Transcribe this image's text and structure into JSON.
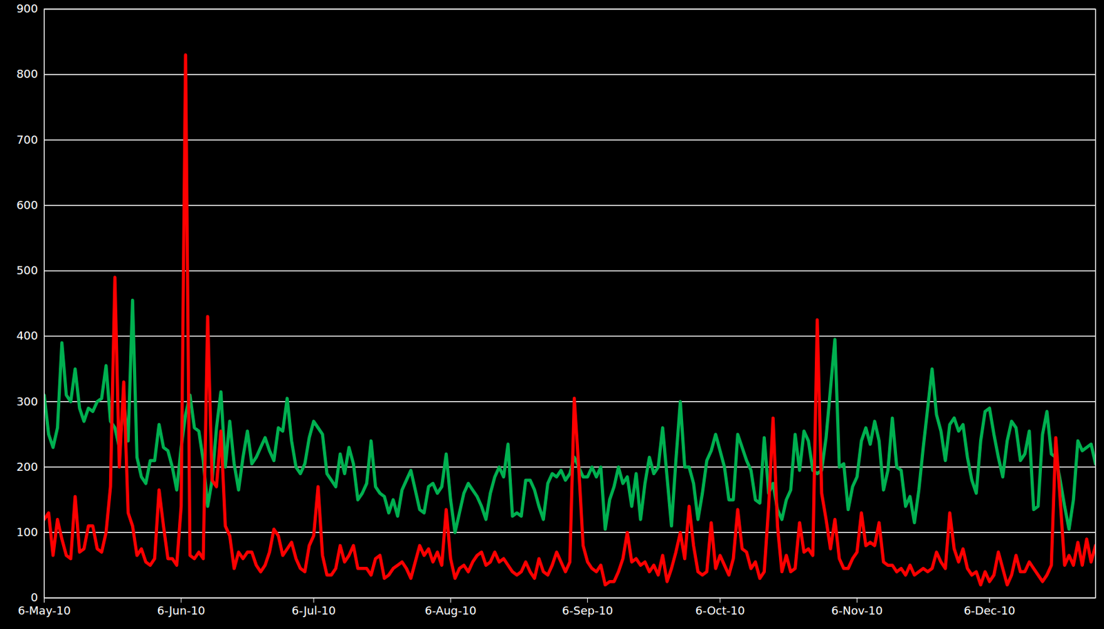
{
  "chart_data": {
    "type": "line",
    "grid": true,
    "xlim": [
      "2010-05-06",
      "2010-12-30"
    ],
    "xticks": [
      {
        "value": "2010-05-06",
        "label": "6-May-10"
      },
      {
        "value": "2010-06-06",
        "label": "6-Jun-10"
      },
      {
        "value": "2010-07-06",
        "label": "6-Jul-10"
      },
      {
        "value": "2010-08-06",
        "label": "6-Aug-10"
      },
      {
        "value": "2010-09-06",
        "label": "6-Sep-10"
      },
      {
        "value": "2010-10-06",
        "label": "6-Oct-10"
      },
      {
        "value": "2010-11-06",
        "label": "6-Nov-10"
      },
      {
        "value": "2010-12-06",
        "label": "6-Dec-10"
      }
    ],
    "ylim": [
      0,
      900
    ],
    "yticks": [
      0,
      100,
      200,
      300,
      400,
      500,
      600,
      700,
      800,
      900
    ],
    "x": [
      "2010-05-06",
      "2010-05-07",
      "2010-05-08",
      "2010-05-09",
      "2010-05-10",
      "2010-05-11",
      "2010-05-12",
      "2010-05-13",
      "2010-05-14",
      "2010-05-15",
      "2010-05-16",
      "2010-05-17",
      "2010-05-18",
      "2010-05-19",
      "2010-05-20",
      "2010-05-21",
      "2010-05-22",
      "2010-05-23",
      "2010-05-24",
      "2010-05-25",
      "2010-05-26",
      "2010-05-27",
      "2010-05-28",
      "2010-05-29",
      "2010-05-30",
      "2010-05-31",
      "2010-06-01",
      "2010-06-02",
      "2010-06-03",
      "2010-06-04",
      "2010-06-05",
      "2010-06-06",
      "2010-06-07",
      "2010-06-08",
      "2010-06-09",
      "2010-06-10",
      "2010-06-11",
      "2010-06-12",
      "2010-06-13",
      "2010-06-14",
      "2010-06-15",
      "2010-06-16",
      "2010-06-17",
      "2010-06-18",
      "2010-06-19",
      "2010-06-20",
      "2010-06-21",
      "2010-06-22",
      "2010-06-23",
      "2010-06-24",
      "2010-06-25",
      "2010-06-26",
      "2010-06-27",
      "2010-06-28",
      "2010-06-29",
      "2010-06-30",
      "2010-07-01",
      "2010-07-02",
      "2010-07-03",
      "2010-07-04",
      "2010-07-05",
      "2010-07-06",
      "2010-07-07",
      "2010-07-08",
      "2010-07-09",
      "2010-07-10",
      "2010-07-11",
      "2010-07-12",
      "2010-07-13",
      "2010-07-14",
      "2010-07-15",
      "2010-07-16",
      "2010-07-17",
      "2010-07-18",
      "2010-07-19",
      "2010-07-20",
      "2010-07-21",
      "2010-07-22",
      "2010-07-23",
      "2010-07-24",
      "2010-07-25",
      "2010-07-26",
      "2010-07-27",
      "2010-07-28",
      "2010-07-29",
      "2010-07-30",
      "2010-07-31",
      "2010-08-01",
      "2010-08-02",
      "2010-08-03",
      "2010-08-04",
      "2010-08-05",
      "2010-08-06",
      "2010-08-07",
      "2010-08-08",
      "2010-08-09",
      "2010-08-10",
      "2010-08-11",
      "2010-08-12",
      "2010-08-13",
      "2010-08-14",
      "2010-08-15",
      "2010-08-16",
      "2010-08-17",
      "2010-08-18",
      "2010-08-19",
      "2010-08-20",
      "2010-08-21",
      "2010-08-22",
      "2010-08-23",
      "2010-08-24",
      "2010-08-25",
      "2010-08-26",
      "2010-08-27",
      "2010-08-28",
      "2010-08-29",
      "2010-08-30",
      "2010-08-31",
      "2010-09-01",
      "2010-09-02",
      "2010-09-03",
      "2010-09-04",
      "2010-09-05",
      "2010-09-06",
      "2010-09-07",
      "2010-09-08",
      "2010-09-09",
      "2010-09-10",
      "2010-09-11",
      "2010-09-12",
      "2010-09-13",
      "2010-09-14",
      "2010-09-15",
      "2010-09-16",
      "2010-09-17",
      "2010-09-18",
      "2010-09-19",
      "2010-09-20",
      "2010-09-21",
      "2010-09-22",
      "2010-09-23",
      "2010-09-24",
      "2010-09-25",
      "2010-09-26",
      "2010-09-27",
      "2010-09-28",
      "2010-09-29",
      "2010-09-30",
      "2010-10-01",
      "2010-10-02",
      "2010-10-03",
      "2010-10-04",
      "2010-10-05",
      "2010-10-06",
      "2010-10-07",
      "2010-10-08",
      "2010-10-09",
      "2010-10-10",
      "2010-10-11",
      "2010-10-12",
      "2010-10-13",
      "2010-10-14",
      "2010-10-15",
      "2010-10-16",
      "2010-10-17",
      "2010-10-18",
      "2010-10-19",
      "2010-10-20",
      "2010-10-21",
      "2010-10-22",
      "2010-10-23",
      "2010-10-24",
      "2010-10-25",
      "2010-10-26",
      "2010-10-27",
      "2010-10-28",
      "2010-10-29",
      "2010-10-30",
      "2010-10-31",
      "2010-11-01",
      "2010-11-02",
      "2010-11-03",
      "2010-11-04",
      "2010-11-05",
      "2010-11-06",
      "2010-11-07",
      "2010-11-08",
      "2010-11-09",
      "2010-11-10",
      "2010-11-11",
      "2010-11-12",
      "2010-11-13",
      "2010-11-14",
      "2010-11-15",
      "2010-11-16",
      "2010-11-17",
      "2010-11-18",
      "2010-11-19",
      "2010-11-20",
      "2010-11-21",
      "2010-11-22",
      "2010-11-23",
      "2010-11-24",
      "2010-11-25",
      "2010-11-26",
      "2010-11-27",
      "2010-11-28",
      "2010-11-29",
      "2010-11-30",
      "2010-12-01",
      "2010-12-02",
      "2010-12-03",
      "2010-12-04",
      "2010-12-05",
      "2010-12-06",
      "2010-12-07",
      "2010-12-08",
      "2010-12-09",
      "2010-12-10",
      "2010-12-11",
      "2010-12-12",
      "2010-12-13",
      "2010-12-14",
      "2010-12-15",
      "2010-12-16",
      "2010-12-17",
      "2010-12-18",
      "2010-12-19",
      "2010-12-20",
      "2010-12-21",
      "2010-12-22",
      "2010-12-23",
      "2010-12-24",
      "2010-12-25",
      "2010-12-26",
      "2010-12-27",
      "2010-12-28",
      "2010-12-29",
      "2010-12-30"
    ],
    "series": [
      {
        "color": "#00b050",
        "values": [
          310,
          250,
          230,
          260,
          390,
          310,
          300,
          350,
          290,
          270,
          290,
          285,
          300,
          305,
          355,
          270,
          260,
          230,
          300,
          240,
          455,
          215,
          185,
          175,
          210,
          210,
          265,
          230,
          225,
          200,
          165,
          230,
          280,
          310,
          260,
          255,
          210,
          140,
          180,
          260,
          315,
          200,
          270,
          205,
          165,
          215,
          255,
          205,
          215,
          230,
          245,
          225,
          210,
          260,
          255,
          305,
          240,
          200,
          190,
          205,
          245,
          270,
          260,
          250,
          190,
          180,
          170,
          220,
          190,
          230,
          205,
          150,
          160,
          175,
          240,
          170,
          160,
          155,
          130,
          150,
          125,
          165,
          180,
          195,
          165,
          135,
          130,
          170,
          175,
          160,
          170,
          220,
          150,
          100,
          130,
          160,
          175,
          165,
          155,
          140,
          120,
          160,
          185,
          200,
          185,
          235,
          125,
          130,
          125,
          180,
          180,
          165,
          140,
          120,
          175,
          190,
          185,
          195,
          180,
          190,
          215,
          200,
          185,
          185,
          200,
          185,
          200,
          105,
          150,
          170,
          200,
          175,
          185,
          140,
          190,
          120,
          175,
          215,
          190,
          200,
          260,
          185,
          110,
          210,
          300,
          200,
          200,
          175,
          120,
          160,
          210,
          225,
          250,
          225,
          200,
          150,
          150,
          250,
          230,
          210,
          195,
          150,
          145,
          245,
          160,
          175,
          135,
          120,
          150,
          165,
          250,
          195,
          255,
          240,
          195,
          190,
          195,
          245,
          320,
          395,
          200,
          205,
          135,
          170,
          185,
          240,
          260,
          235,
          270,
          240,
          165,
          195,
          275,
          200,
          195,
          140,
          155,
          115,
          165,
          230,
          290,
          350,
          280,
          255,
          210,
          265,
          275,
          255,
          265,
          215,
          180,
          160,
          240,
          285,
          290,
          250,
          215,
          185,
          240,
          270,
          260,
          210,
          220,
          255,
          135,
          140,
          250,
          285,
          220,
          215,
          180,
          140,
          105,
          150,
          240,
          225,
          230,
          235,
          205
        ]
      },
      {
        "color": "#ff0000",
        "values": [
          120,
          130,
          65,
          120,
          90,
          65,
          60,
          155,
          70,
          75,
          110,
          110,
          75,
          70,
          100,
          170,
          490,
          200,
          330,
          130,
          110,
          65,
          75,
          55,
          50,
          60,
          165,
          110,
          60,
          60,
          50,
          140,
          830,
          65,
          60,
          70,
          60,
          430,
          180,
          170,
          255,
          110,
          95,
          45,
          70,
          60,
          70,
          70,
          50,
          40,
          50,
          70,
          105,
          95,
          65,
          75,
          85,
          60,
          45,
          40,
          80,
          95,
          170,
          65,
          35,
          35,
          45,
          80,
          55,
          65,
          80,
          45,
          45,
          45,
          35,
          60,
          65,
          30,
          35,
          45,
          50,
          55,
          45,
          30,
          55,
          80,
          65,
          75,
          55,
          70,
          50,
          135,
          60,
          30,
          45,
          50,
          40,
          55,
          65,
          70,
          50,
          55,
          70,
          55,
          60,
          50,
          40,
          35,
          40,
          55,
          40,
          30,
          60,
          40,
          35,
          50,
          70,
          55,
          40,
          55,
          305,
          200,
          80,
          55,
          45,
          40,
          50,
          20,
          25,
          25,
          40,
          60,
          100,
          55,
          60,
          50,
          55,
          40,
          50,
          35,
          65,
          25,
          45,
          70,
          100,
          60,
          140,
          80,
          40,
          35,
          40,
          115,
          45,
          65,
          50,
          35,
          60,
          135,
          75,
          70,
          45,
          55,
          30,
          40,
          140,
          275,
          110,
          40,
          65,
          40,
          45,
          115,
          70,
          75,
          65,
          425,
          160,
          120,
          75,
          120,
          60,
          45,
          45,
          60,
          70,
          130,
          80,
          85,
          80,
          115,
          55,
          50,
          50,
          40,
          45,
          35,
          50,
          35,
          40,
          45,
          40,
          45,
          70,
          55,
          45,
          130,
          75,
          55,
          75,
          45,
          35,
          40,
          20,
          40,
          25,
          35,
          70,
          45,
          20,
          35,
          65,
          40,
          40,
          55,
          45,
          35,
          25,
          35,
          50,
          245,
          150,
          50,
          65,
          50,
          85,
          50,
          90,
          55,
          80
        ]
      }
    ]
  }
}
